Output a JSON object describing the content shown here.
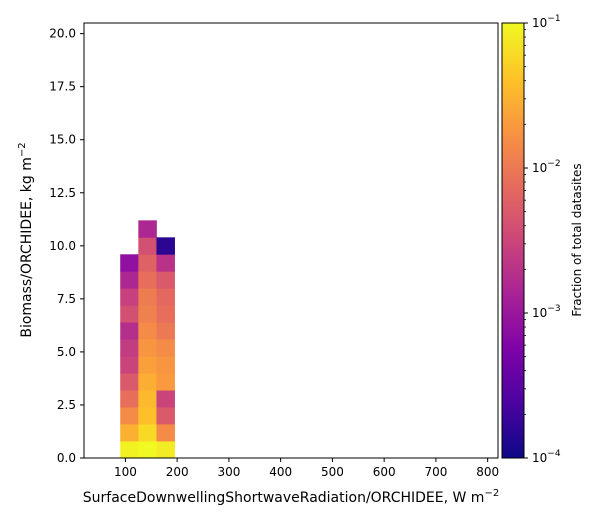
{
  "chart_data": {
    "type": "heatmap",
    "xlabel": "SurfaceDownwellingShortwaveRadiation/ORCHIDEE,  W m$^{-2}$",
    "xlabel_main": "SurfaceDownwellingShortwaveRadiation/ORCHIDEE,  W m",
    "xlabel_sup": "−2",
    "ylabel_main": "Biomass/ORCHIDEE,  kg m",
    "ylabel_sup": "−2",
    "xlim": [
      20,
      820
    ],
    "ylim": [
      0,
      20.5
    ],
    "xticks": [
      100,
      200,
      300,
      400,
      500,
      600,
      700,
      800
    ],
    "xtick_labels": [
      "100",
      "200",
      "300",
      "400",
      "500",
      "600",
      "700",
      "800"
    ],
    "yticks": [
      0,
      2.5,
      5,
      7.5,
      10,
      12.5,
      15,
      17.5,
      20
    ],
    "ytick_labels": [
      "0.0",
      "2.5",
      "5.0",
      "7.5",
      "10.0",
      "12.5",
      "15.0",
      "17.5",
      "20.0"
    ],
    "bin_width_x": 35,
    "bin_height_y": 0.8,
    "colorbar": {
      "label": "Fraction of total datasites",
      "scale": "log",
      "range": [
        0.0001,
        0.1
      ],
      "colormap": "plasma",
      "tick_values": [
        0.1,
        0.01,
        0.001,
        0.0001
      ],
      "tick_labels": [
        {
          "base": "10",
          "exp": "−1"
        },
        {
          "base": "10",
          "exp": "−2"
        },
        {
          "base": "10",
          "exp": "−3"
        },
        {
          "base": "10",
          "exp": "−4"
        }
      ]
    },
    "columns": [
      {
        "x_start": 90,
        "fractions": [
          0.09,
          0.03,
          0.015,
          0.008,
          0.005,
          0.003,
          0.0025,
          0.0018,
          0.004,
          0.0028,
          0.0015,
          0.0008
        ]
      },
      {
        "x_start": 125,
        "fractions": [
          0.1,
          0.06,
          0.04,
          0.035,
          0.028,
          0.022,
          0.018,
          0.015,
          0.012,
          0.011,
          0.008,
          0.006,
          0.004,
          0.0015
        ]
      },
      {
        "x_start": 160,
        "fractions": [
          0.08,
          0.015,
          0.005,
          0.003,
          0.02,
          0.018,
          0.015,
          0.01,
          0.008,
          0.007,
          0.005,
          0.002,
          0.00015
        ]
      }
    ]
  }
}
